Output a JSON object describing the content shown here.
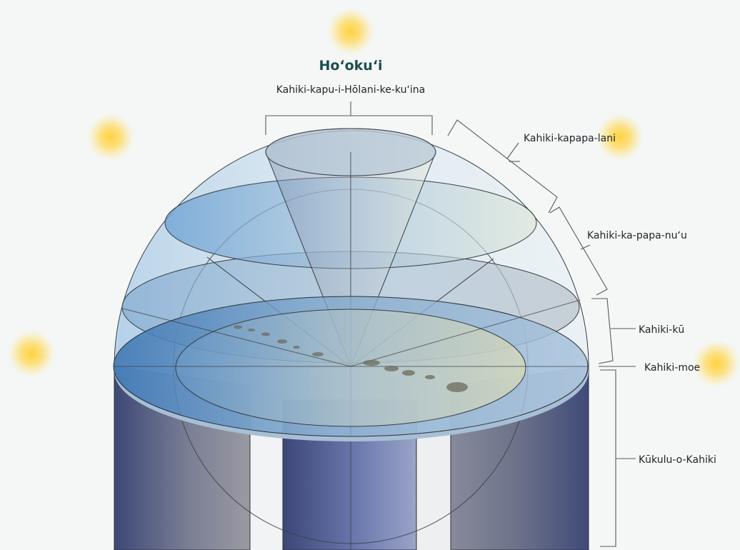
{
  "title": "Hoʻokuʻi",
  "labels": {
    "top": "Kahiki-kapu-i-Hōlani-ke-kuʻina",
    "kapapa_lani": "Kahiki-kapapa-lani",
    "kapapa_nuu": "Kahiki-ka-papa-nuʻu",
    "ku": "Kahiki-kū",
    "moe": "Kahiki-moe",
    "kukulu": "Kūkulu-o-Kahiki"
  },
  "colors": {
    "title": "#1d4d4d",
    "background": "#f4f7f6",
    "sun": "#ffd54a",
    "pillar_dark": "#3d4a7a",
    "dome": "#a9c9e6"
  }
}
